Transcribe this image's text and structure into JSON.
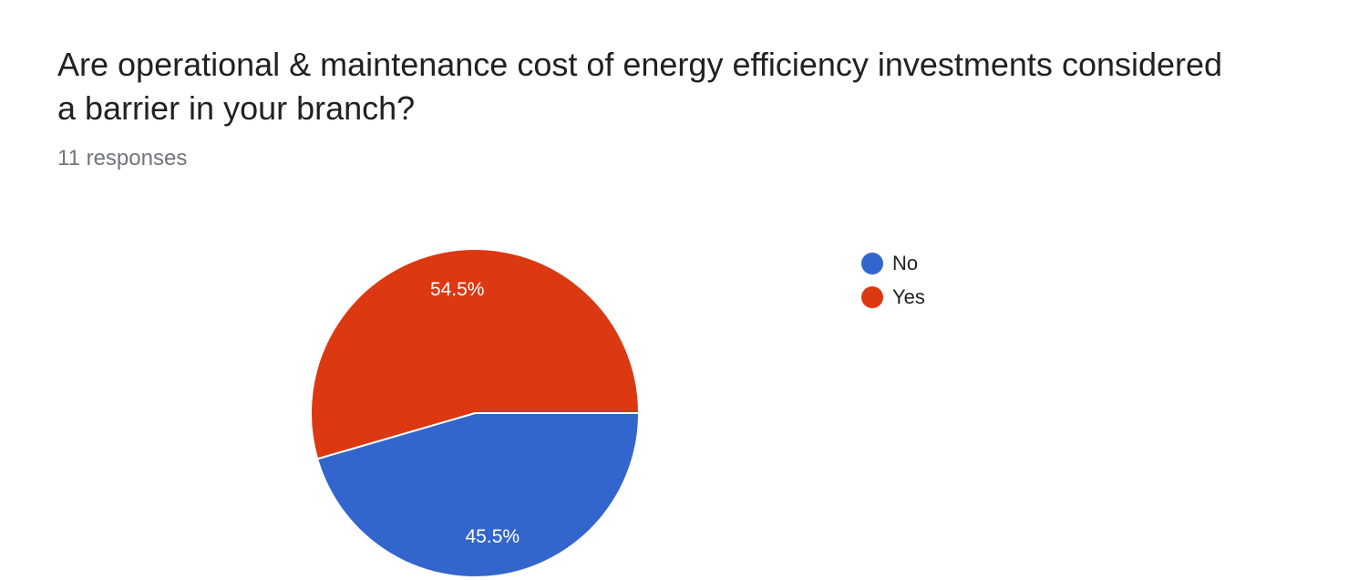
{
  "question": {
    "title": "Are operational & maintenance cost of energy efficiency investments considered a barrier in your branch?",
    "responses": "11 responses"
  },
  "chart_data": {
    "type": "pie",
    "categories": [
      "No",
      "Yes"
    ],
    "values": [
      45.5,
      54.5
    ],
    "labels": [
      "45.5%",
      "54.5%"
    ],
    "colors": [
      "#3366cc",
      "#dc3912"
    ],
    "legend_position": "right"
  },
  "legend": {
    "items": [
      {
        "label": "No",
        "color": "#3366cc"
      },
      {
        "label": "Yes",
        "color": "#dc3912"
      }
    ]
  }
}
